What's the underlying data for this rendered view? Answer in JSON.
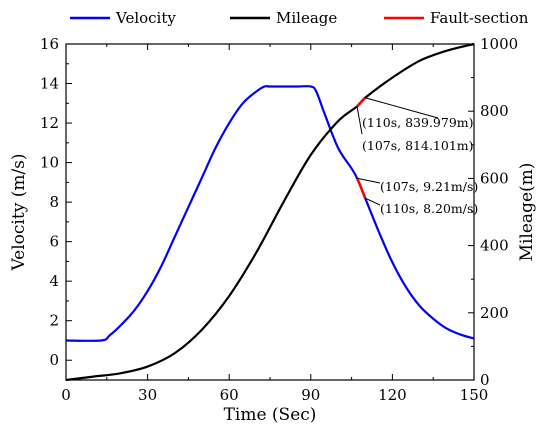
{
  "chart_data": {
    "type": "line",
    "xlabel": "Time (Sec)",
    "ylabel_left": "Velocity (m/s)",
    "ylabel_right": "Mileage(m)",
    "xlim": [
      0,
      150
    ],
    "ylim_left": [
      -1,
      16
    ],
    "ylim_right": [
      0,
      1000
    ],
    "x_ticks": [
      0,
      30,
      60,
      90,
      120,
      150
    ],
    "y_ticks_left": [
      0,
      2,
      4,
      6,
      8,
      10,
      12,
      14,
      16
    ],
    "y_ticks_right": [
      0,
      200,
      400,
      600,
      800,
      1000
    ],
    "grid": false,
    "legend_position": "top",
    "legend": [
      {
        "name": "Velocity",
        "color": "#0000ff"
      },
      {
        "name": "Mileage",
        "color": "#000000"
      },
      {
        "name": "Fault-section",
        "color": "#ff0000"
      }
    ],
    "series": [
      {
        "name": "Velocity",
        "axis": "left",
        "color": "#0000ff",
        "x": [
          0,
          13,
          16,
          20,
          25,
          30,
          35,
          40,
          45,
          50,
          55,
          60,
          65,
          70,
          73,
          75,
          80,
          85,
          90,
          92,
          95,
          100,
          105,
          107,
          110,
          115,
          120,
          125,
          130,
          135,
          140,
          145,
          150
        ],
        "y": [
          1.0,
          1.0,
          1.25,
          1.75,
          2.5,
          3.5,
          4.75,
          6.25,
          7.75,
          9.25,
          10.75,
          12.0,
          13.0,
          13.6,
          13.85,
          13.85,
          13.85,
          13.85,
          13.85,
          13.6,
          12.5,
          10.75,
          9.7,
          9.21,
          8.2,
          6.5,
          4.95,
          3.7,
          2.75,
          2.1,
          1.6,
          1.3,
          1.1
        ]
      },
      {
        "name": "Mileage",
        "axis": "right",
        "color": "#000000",
        "x": [
          0,
          10,
          20,
          30,
          40,
          50,
          60,
          70,
          80,
          90,
          100,
          107,
          110,
          120,
          130,
          140,
          150
        ],
        "y": [
          0,
          10,
          20,
          40,
          80,
          150,
          250,
          380,
          530,
          670,
          770,
          814.101,
          839.979,
          900,
          950,
          980,
          1000
        ]
      },
      {
        "name": "Fault-section",
        "axis": "left",
        "color": "#ff0000",
        "x": [
          107,
          108,
          109,
          110
        ],
        "y": [
          9.21,
          8.9,
          8.55,
          8.2
        ]
      },
      {
        "name": "Fault-section",
        "axis": "right",
        "color": "#ff0000",
        "x": [
          107,
          108,
          109,
          110
        ],
        "y": [
          814.101,
          823,
          831,
          839.979
        ]
      }
    ],
    "annotations": [
      {
        "text": "(110s, 839.979m)",
        "x": 110,
        "y": 839.979,
        "axis": "right"
      },
      {
        "text": "(107s, 814.101m)",
        "x": 107,
        "y": 814.101,
        "axis": "right"
      },
      {
        "text": "(107s, 9.21m/s)",
        "x": 107,
        "y": 9.21,
        "axis": "left"
      },
      {
        "text": "(110s, 8.20m/s)",
        "x": 110,
        "y": 8.2,
        "axis": "left"
      }
    ]
  }
}
